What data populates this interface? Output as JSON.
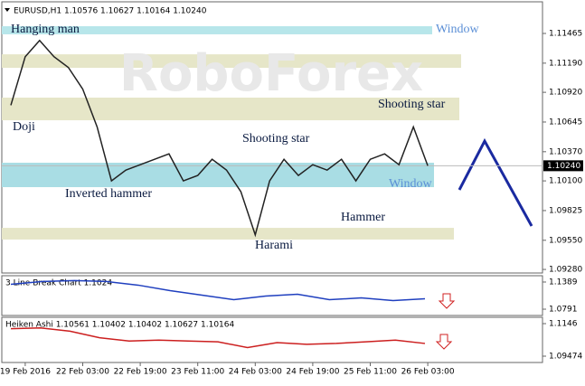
{
  "chart_data": [
    {
      "type": "line",
      "title": "EURUSD,H1 1.10576 1.10627 1.10164 1.10240",
      "watermark": "RoboForex",
      "categories": [
        null,
        "19 Feb 2016",
        null,
        null,
        null,
        "22 Feb 03:00",
        null,
        null,
        null,
        "22 Feb 19:00",
        null,
        null,
        null,
        "23 Feb 11:00",
        null,
        null,
        null,
        "24 Feb 03:00",
        null,
        null,
        null,
        "24 Feb 19:00",
        null,
        null,
        null,
        "25 Feb 11:00",
        null,
        null,
        null,
        "26 Feb 03:00"
      ],
      "values": [
        1.108,
        1.1125,
        1.114,
        1.1125,
        1.1115,
        1.1095,
        1.106,
        1.101,
        1.102,
        1.1025,
        1.103,
        1.1035,
        1.101,
        1.1015,
        1.103,
        1.102,
        1.1,
        1.096,
        1.101,
        1.103,
        1.1015,
        1.1025,
        1.102,
        1.103,
        1.101,
        1.103,
        1.1035,
        1.1025,
        1.106,
        1.1024
      ],
      "color": "#222222",
      "ylim": [
        1.09247,
        1.11758
      ],
      "yticks": [
        1.11465,
        {
          "value": 1.1119,
          "label": "1.11190"
        },
        {
          "value": 1.1092,
          "label": "1.10920"
        },
        1.10645,
        {
          "value": 1.1037,
          "label": "1.10370"
        },
        {
          "value": 1.101,
          "label": "1.10100"
        },
        1.09825,
        {
          "value": 1.0955,
          "label": "1.09550"
        },
        {
          "value": 1.0928,
          "label": "1.09280"
        }
      ],
      "last_price": {
        "value": 1.1024,
        "label": "1.10240"
      },
      "zones": [
        {
          "range": [
            1.11457,
            1.11532
          ],
          "color": "#b7e6ea"
        },
        {
          "range": [
            1.11147,
            1.11272
          ],
          "color": "#e6e6c8"
        },
        {
          "range": [
            1.10661,
            1.10871
          ],
          "color": "#e6e6c8"
        },
        {
          "range": [
            1.10042,
            1.10268
          ],
          "color": "#a9dde4"
        },
        {
          "range": [
            1.09557,
            1.09665
          ],
          "color": "#e6e6c8"
        }
      ],
      "annotations": [
        "Hanging man",
        "Doji",
        "Inverted hammer",
        "Shooting star",
        "Harami",
        "Hammer",
        "Shooting star",
        "Window",
        "Window"
      ]
    },
    {
      "type": "line",
      "title": "3 Line Break Chart 1.1024",
      "values": [
        1.134,
        1.14,
        1.142,
        1.14,
        1.132,
        1.12,
        1.11,
        1.1,
        1.108,
        1.112,
        1.1,
        1.104,
        1.098,
        1.102
      ],
      "color": "#1f3fbf",
      "ylim": [
        1.0652,
        1.1528
      ],
      "yticks": [
        1.1389,
        1.0791
      ]
    },
    {
      "type": "line",
      "title": "Heiken Ashi 1.10561 1.10402 1.10402 1.10627 1.10164",
      "values": [
        1.1115,
        1.112,
        1.11,
        1.106,
        1.104,
        1.1045,
        1.104,
        1.1035,
        1.1,
        1.103,
        1.102,
        1.1025,
        1.1035,
        1.1045,
        1.1025
      ],
      "color": "#cc1f1f",
      "ylim": [
        1.09088,
        1.11846
      ],
      "yticks": [
        1.1146,
        1.09474
      ]
    }
  ]
}
